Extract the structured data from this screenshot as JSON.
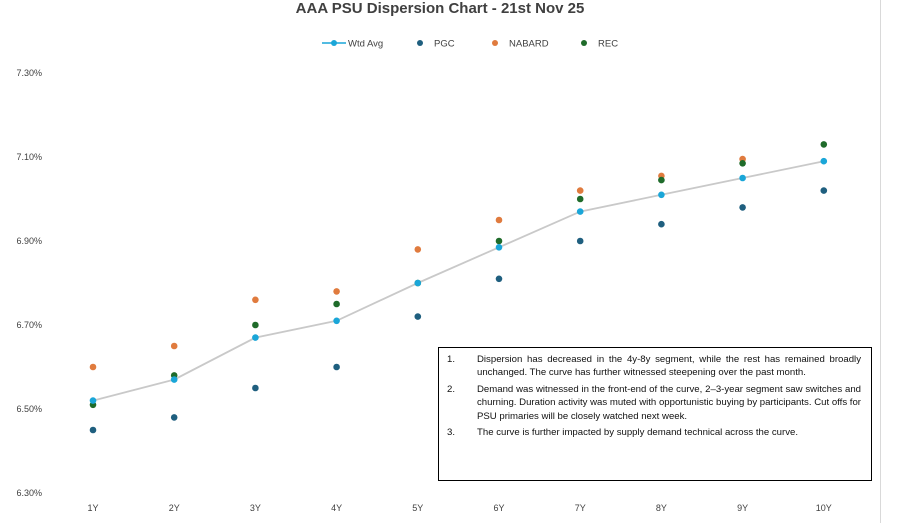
{
  "chart_data": {
    "type": "scatter",
    "title": "AAA PSU Dispersion Chart - 21st Nov 25",
    "categories": [
      "1Y",
      "2Y",
      "3Y",
      "4Y",
      "5Y",
      "6Y",
      "7Y",
      "8Y",
      "9Y",
      "10Y"
    ],
    "ylim": [
      6.3,
      7.4
    ],
    "yticks": [
      "6.30%",
      "6.50%",
      "6.70%",
      "6.90%",
      "7.10%",
      "7.30%"
    ],
    "ytick_values": [
      6.3,
      6.5,
      6.7,
      6.9,
      7.1,
      7.3
    ],
    "legend_position": "top",
    "series": [
      {
        "name": "Wtd Avg",
        "style": "line-marker",
        "color": "#1aa6d8",
        "line_color": "#c9c9c9",
        "values": [
          6.52,
          6.57,
          6.67,
          6.71,
          6.8,
          6.885,
          6.97,
          7.01,
          7.05,
          7.09
        ]
      },
      {
        "name": "PGC",
        "style": "marker",
        "color": "#1f5f7f",
        "values": [
          6.45,
          6.48,
          6.55,
          6.6,
          6.72,
          6.81,
          6.9,
          6.94,
          6.98,
          7.02
        ]
      },
      {
        "name": "NABARD",
        "style": "marker",
        "color": "#e07b3e",
        "values": [
          6.6,
          6.65,
          6.76,
          6.78,
          6.88,
          6.95,
          7.02,
          7.055,
          7.095,
          null
        ]
      },
      {
        "name": "REC",
        "style": "marker",
        "color": "#1f6b2a",
        "values": [
          6.51,
          6.58,
          6.7,
          6.75,
          6.8,
          6.9,
          7.0,
          7.045,
          7.085,
          7.13
        ]
      }
    ]
  },
  "notes": [
    {
      "num": "1.",
      "text": "Dispersion has decreased in the 4y-8y segment, while the rest has remained broadly unchanged. The curve has further witnessed steepening over the  past month."
    },
    {
      "num": "2.",
      "text": "Demand was witnessed in the front-end of the curve, 2–3-year segment saw switches and churning. Duration activity was muted with opportunistic buying by participants. Cut offs for PSU primaries will be closely watched next week."
    },
    {
      "num": "3.",
      "text": "The curve is further impacted by supply demand technical across the curve."
    }
  ]
}
